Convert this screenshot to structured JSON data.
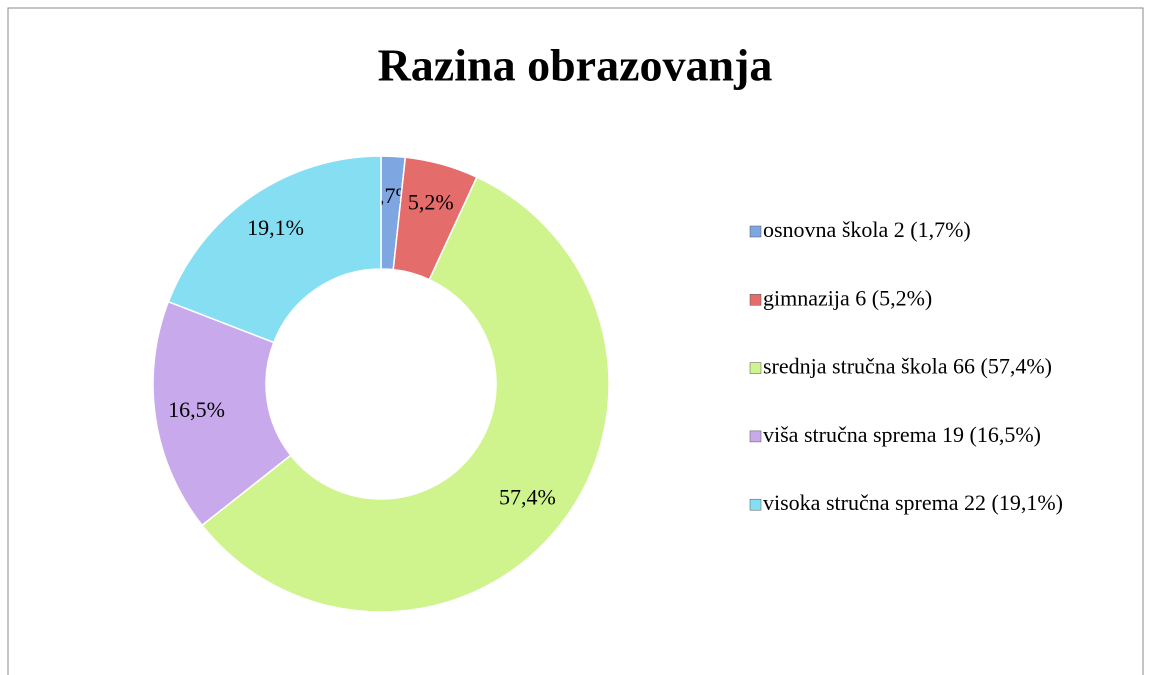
{
  "chart_data": {
    "type": "donut",
    "title": "Razina obrazovanja",
    "categories": [
      "osnovna škola 2 (1,7%)",
      "gimnazija 6 (5,2%)",
      "srednja stručna škola 66 (57,4%)",
      "viša stručna sprema 19 (16,5%)",
      "visoka stručna sprema 22 (19,1%)"
    ],
    "values": [
      1.7,
      5.2,
      57.4,
      16.5,
      19.1
    ],
    "value_labels": [
      "1,7%",
      "5,2%",
      "57,4%",
      "16,5%",
      "19,1%"
    ],
    "colors": [
      "#7ea6e0",
      "#e46c6a",
      "#cff48e",
      "#c8a9ec",
      "#86def2"
    ],
    "legend": "right"
  }
}
